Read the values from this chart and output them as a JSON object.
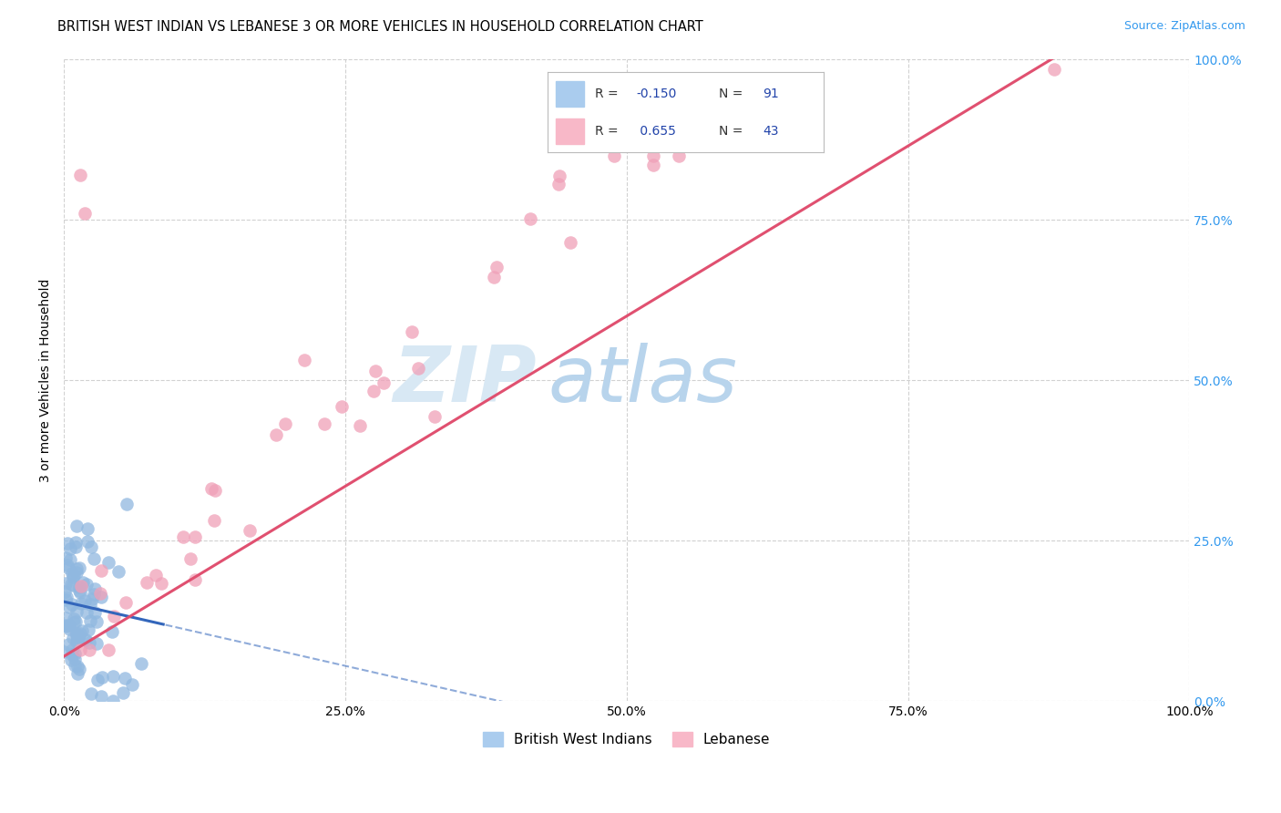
{
  "title": "BRITISH WEST INDIAN VS LEBANESE 3 OR MORE VEHICLES IN HOUSEHOLD CORRELATION CHART",
  "source": "Source: ZipAtlas.com",
  "ylabel": "3 or more Vehicles in Household",
  "watermark_zip": "ZIP",
  "watermark_atlas": "atlas",
  "xlim": [
    0.0,
    1.0
  ],
  "ylim": [
    0.0,
    1.0
  ],
  "xticks": [
    0.0,
    0.25,
    0.5,
    0.75,
    1.0
  ],
  "yticks": [
    0.0,
    0.25,
    0.5,
    0.75,
    1.0
  ],
  "xtick_labels": [
    "0.0%",
    "25.0%",
    "50.0%",
    "75.0%",
    "100.0%"
  ],
  "ytick_labels_right": [
    "0.0%",
    "25.0%",
    "50.0%",
    "75.0%",
    "100.0%"
  ],
  "bwi_color": "#90b8e0",
  "leb_color": "#f0a0b8",
  "bwi_line_color": "#3366bb",
  "leb_line_color": "#e05070",
  "bwi_R": -0.15,
  "bwi_N": 91,
  "leb_R": 0.655,
  "leb_N": 43,
  "title_fontsize": 10.5,
  "source_fontsize": 9,
  "label_fontsize": 10,
  "tick_fontsize": 10,
  "watermark_fontsize_zip": 62,
  "watermark_fontsize_atlas": 62,
  "watermark_color_zip": "#d8e8f4",
  "watermark_color_atlas": "#b8d4ec",
  "background_color": "#ffffff",
  "grid_color": "#cccccc",
  "grid_style": "--",
  "legend_R_color": "#2244aa",
  "legend_label_color": "#333333"
}
